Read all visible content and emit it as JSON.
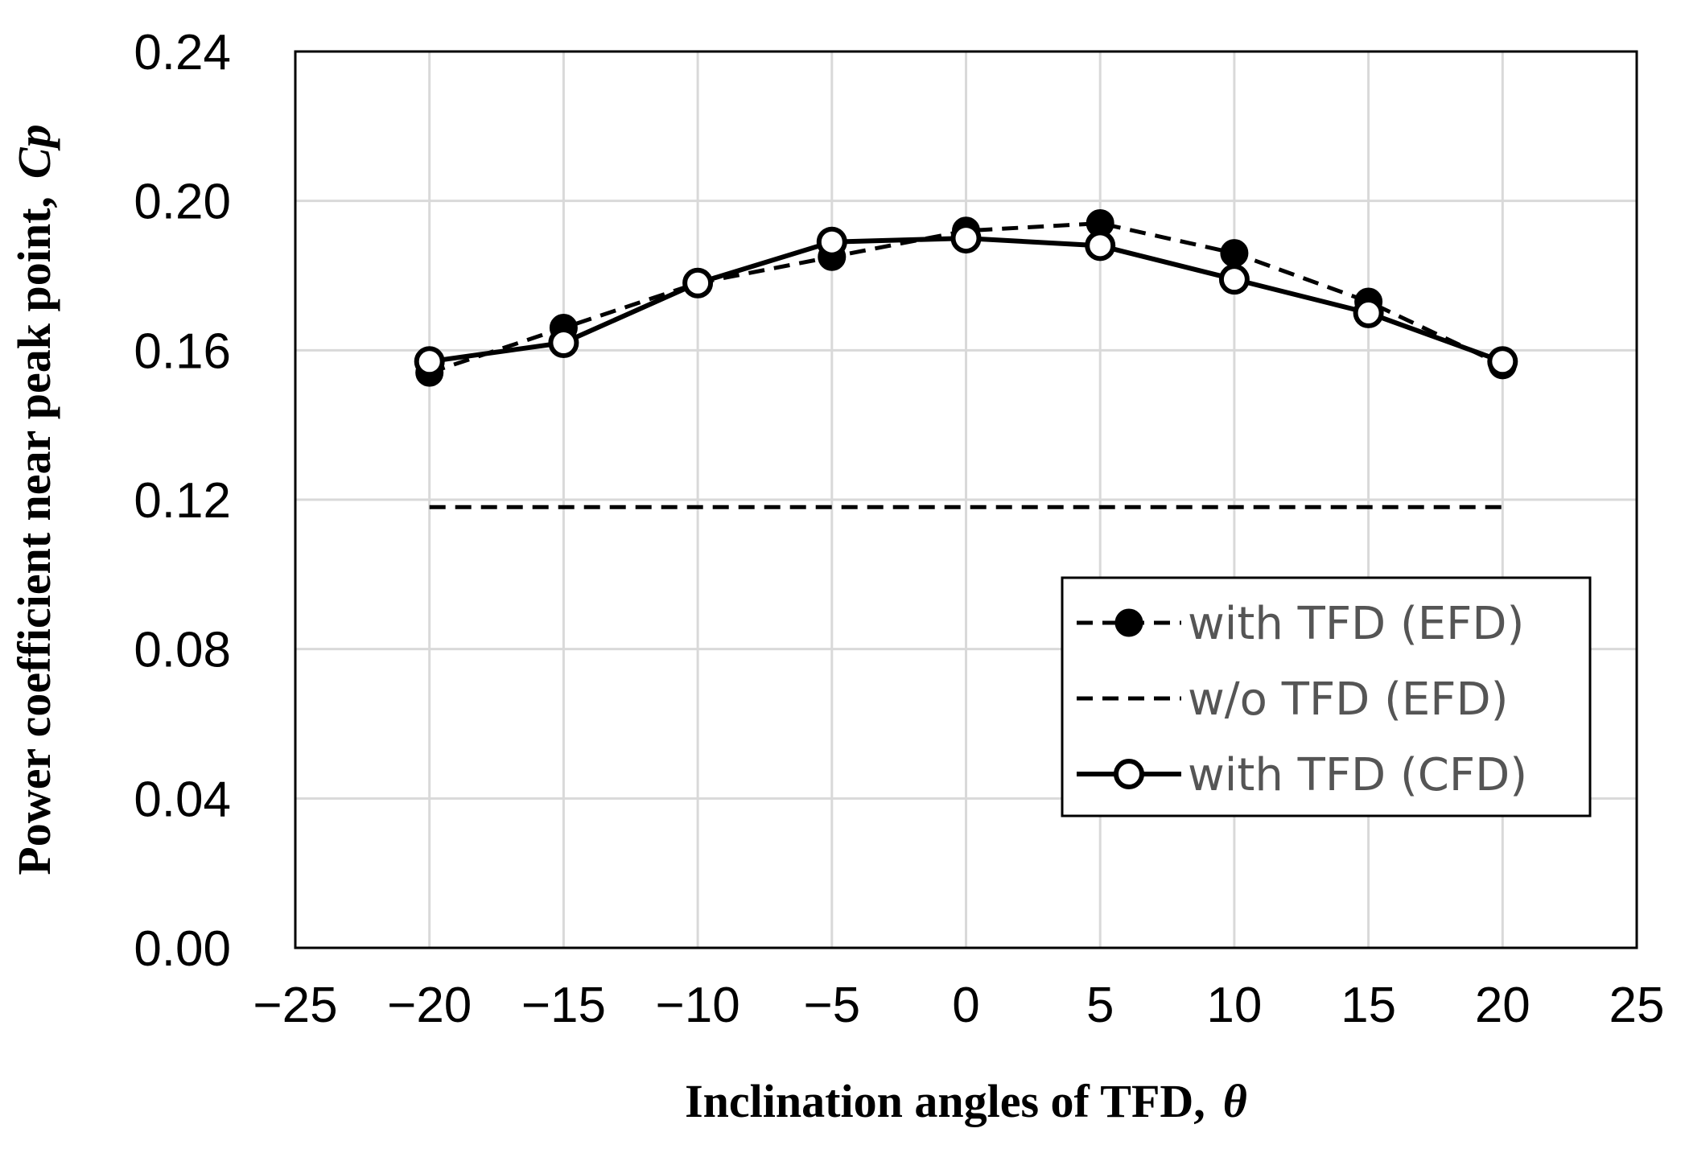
{
  "chart_data": {
    "type": "line",
    "title": "",
    "xlabel": "Inclination angles of TFD,",
    "xlabel_symbol": "θ",
    "ylabel": "Power coefficient near peak point,",
    "ylabel_symbol": "Cp",
    "xlim": [
      -25,
      25
    ],
    "ylim": [
      0,
      0.24
    ],
    "xticks": [
      -25,
      -20,
      -15,
      -10,
      -5,
      0,
      5,
      10,
      15,
      20,
      25
    ],
    "xtick_labels": [
      "−25",
      "−20",
      "−15",
      "−10",
      "−5",
      "0",
      "5",
      "10",
      "15",
      "20",
      "25"
    ],
    "yticks": [
      0,
      0.04,
      0.08,
      0.12,
      0.16,
      0.2,
      0.24
    ],
    "ytick_labels": [
      "0.00",
      "0.04",
      "0.08",
      "0.12",
      "0.16",
      "0.20",
      "0.24"
    ],
    "grid": true,
    "legend_position": "bottom-right",
    "series": [
      {
        "name": "with TFD (EFD)",
        "line": "dashed",
        "marker": "filled-circle",
        "x": [
          -20,
          -15,
          -10,
          -5,
          0,
          5,
          10,
          15,
          20
        ],
        "y": [
          0.154,
          0.166,
          0.178,
          0.185,
          0.192,
          0.194,
          0.186,
          0.173,
          0.156
        ]
      },
      {
        "name": "w/o TFD (EFD)",
        "line": "dashed",
        "marker": "none",
        "x": [
          -20,
          20
        ],
        "y": [
          0.118,
          0.118
        ]
      },
      {
        "name": "with TFD (CFD)",
        "line": "solid",
        "marker": "open-circle",
        "x": [
          -20,
          -15,
          -10,
          -5,
          0,
          5,
          10,
          15,
          20
        ],
        "y": [
          0.157,
          0.162,
          0.178,
          0.189,
          0.19,
          0.188,
          0.179,
          0.17,
          0.157
        ]
      }
    ]
  }
}
